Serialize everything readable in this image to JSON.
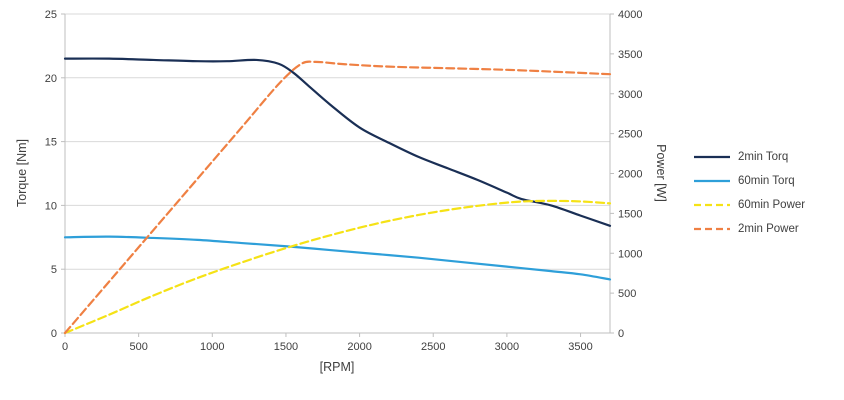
{
  "colors": {
    "grid": "#d9d9d9",
    "axis": "#bfbfbf",
    "text": "#404040"
  },
  "chart_data": {
    "type": "line",
    "title": "",
    "xlabel": "[RPM]",
    "ylabel_left": "Torque [Nm]",
    "ylabel_right": "Power [W]",
    "x_range": [
      0,
      3700
    ],
    "y_left_range": [
      0,
      25
    ],
    "y_right_range": [
      0,
      4000
    ],
    "x_ticks": [
      0,
      500,
      1000,
      1500,
      2000,
      2500,
      3000,
      3500
    ],
    "y_left_ticks": [
      0,
      5,
      10,
      15,
      20,
      25
    ],
    "y_right_ticks": [
      0,
      500,
      1000,
      1500,
      2000,
      2500,
      3000,
      3500,
      4000
    ],
    "grid": true,
    "legend_position": "right",
    "series": [
      {
        "name": "2min Torq",
        "axis": "left",
        "color": "#1a2f55",
        "style": "solid",
        "points": [
          [
            0,
            21.5
          ],
          [
            300,
            21.5
          ],
          [
            600,
            21.4
          ],
          [
            900,
            21.3
          ],
          [
            1100,
            21.3
          ],
          [
            1300,
            21.4
          ],
          [
            1450,
            21.1
          ],
          [
            1550,
            20.4
          ],
          [
            1650,
            19.4
          ],
          [
            1800,
            17.9
          ],
          [
            2000,
            16.1
          ],
          [
            2200,
            14.9
          ],
          [
            2400,
            13.8
          ],
          [
            2600,
            12.9
          ],
          [
            2800,
            12.0
          ],
          [
            3000,
            11.0
          ],
          [
            3100,
            10.5
          ],
          [
            3300,
            10.0
          ],
          [
            3500,
            9.2
          ],
          [
            3700,
            8.4
          ]
        ]
      },
      {
        "name": "60min Torq",
        "axis": "left",
        "color": "#2e9fd9",
        "style": "solid",
        "points": [
          [
            0,
            7.5
          ],
          [
            300,
            7.55
          ],
          [
            600,
            7.45
          ],
          [
            900,
            7.3
          ],
          [
            1200,
            7.05
          ],
          [
            1500,
            6.8
          ],
          [
            1800,
            6.5
          ],
          [
            2100,
            6.2
          ],
          [
            2400,
            5.9
          ],
          [
            2700,
            5.55
          ],
          [
            3000,
            5.2
          ],
          [
            3300,
            4.85
          ],
          [
            3500,
            4.6
          ],
          [
            3700,
            4.2
          ]
        ]
      },
      {
        "name": "60min Power",
        "axis": "right",
        "color": "#f5e216",
        "style": "dashed",
        "points": [
          [
            0,
            0
          ],
          [
            300,
            230
          ],
          [
            600,
            470
          ],
          [
            900,
            690
          ],
          [
            1200,
            885
          ],
          [
            1500,
            1065
          ],
          [
            1800,
            1225
          ],
          [
            2100,
            1365
          ],
          [
            2400,
            1480
          ],
          [
            2700,
            1570
          ],
          [
            3000,
            1635
          ],
          [
            3200,
            1655
          ],
          [
            3400,
            1655
          ],
          [
            3550,
            1645
          ],
          [
            3700,
            1625
          ]
        ]
      },
      {
        "name": "2min Power",
        "axis": "right",
        "color": "#ef8043",
        "style": "dashed",
        "points": [
          [
            0,
            0
          ],
          [
            400,
            860
          ],
          [
            800,
            1720
          ],
          [
            1200,
            2580
          ],
          [
            1450,
            3120
          ],
          [
            1600,
            3370
          ],
          [
            1700,
            3400
          ],
          [
            1900,
            3370
          ],
          [
            2200,
            3340
          ],
          [
            2600,
            3320
          ],
          [
            3000,
            3300
          ],
          [
            3400,
            3270
          ],
          [
            3700,
            3245
          ]
        ]
      }
    ]
  }
}
